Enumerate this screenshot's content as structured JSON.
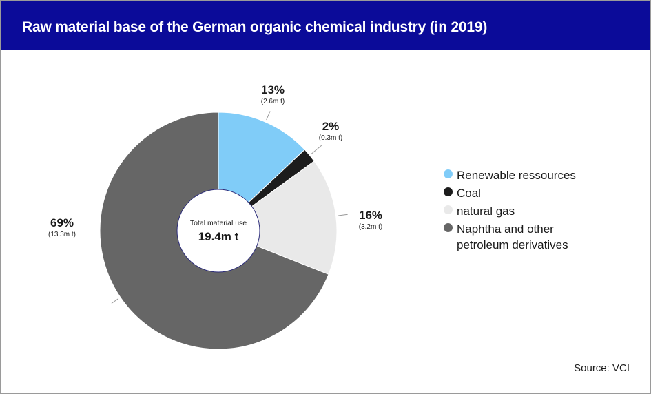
{
  "header": {
    "title": "Raw material base of the German organic chemical industry (in 2019)",
    "background_color": "#0b0b99"
  },
  "center": {
    "label": "Total material use",
    "total": "19.4m t"
  },
  "chart_data": {
    "type": "pie",
    "title": "Raw material base of the German organic chemical industry (in 2019)",
    "unit": "m t",
    "total": 19.4,
    "series": [
      {
        "name": "Renewable ressources",
        "percent": 13,
        "value": 2.6,
        "percent_label": "13%",
        "value_label": "(2.6m t)",
        "color": "#80ccf8"
      },
      {
        "name": "Coal",
        "percent": 2,
        "value": 0.3,
        "percent_label": "2%",
        "value_label": "(0.3m t)",
        "color": "#1c1c1c"
      },
      {
        "name": "natural gas",
        "percent": 16,
        "value": 3.2,
        "percent_label": "16%",
        "value_label": "(3.2m t)",
        "color": "#e9e9e9"
      },
      {
        "name": "Naphtha and other petroleum derivatives",
        "percent": 69,
        "value": 13.3,
        "percent_label": "69%",
        "value_label": "(13.3m t)",
        "color": "#666666"
      }
    ],
    "legend_position": "right"
  },
  "legend": [
    {
      "line1": "Renewable ressources",
      "line2": ""
    },
    {
      "line1": "Coal",
      "line2": ""
    },
    {
      "line1": "natural gas",
      "line2": ""
    },
    {
      "line1": "Naphtha and other",
      "line2": "petroleum derivatives"
    }
  ],
  "footer": {
    "source": "Source: VCI"
  }
}
